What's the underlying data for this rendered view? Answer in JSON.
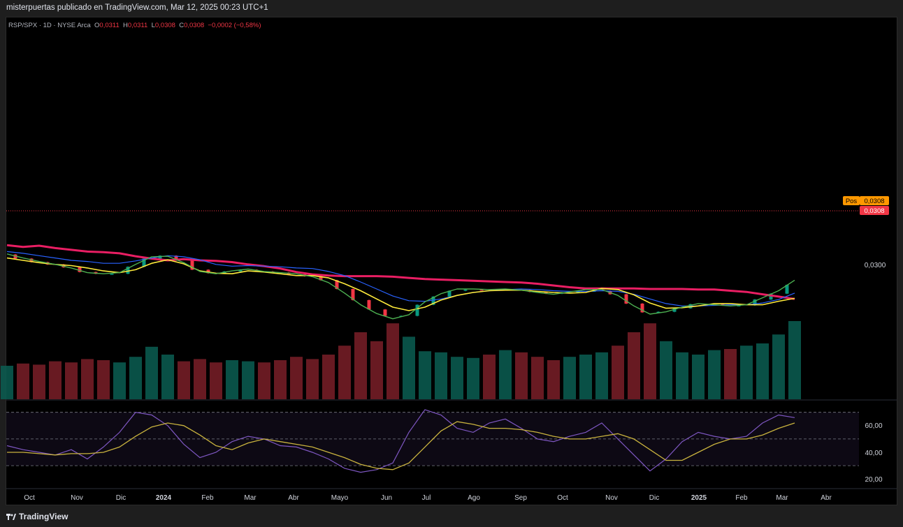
{
  "header": {
    "published": "misterpuertas publicado en TradingView.com, Mar 12, 2025 00:23 UTC+1"
  },
  "legend": {
    "symbol": "RSP/SPX · 1D · NYSE Arca",
    "o_label": "O",
    "o_value": "0,0311",
    "h_label": "H",
    "h_value": "0,0311",
    "l_label": "L",
    "l_value": "0,0308",
    "c_label": "C",
    "c_value": "0,0308",
    "change": "−0,0002 (−0,58%)"
  },
  "price_axis": {
    "pos_label": "Pos",
    "pos_value": "0,0308",
    "last_value": "0,0308",
    "tick_0300": "0,0300"
  },
  "rsi_axis": {
    "ticks": [
      "60,00",
      "40,00",
      "20,00"
    ]
  },
  "footer": {
    "brand": "TradingView"
  },
  "colors": {
    "up": "#089981",
    "down": "#f23645",
    "ma_long": "#e91e63",
    "ma_mid": "#4caf50",
    "ma_fast": "#ffeb3b",
    "ma_blue": "#2962ff",
    "rsi": "#7e57c2",
    "rsi_ma": "#c9b33e",
    "pos_bg": "#ff9800"
  },
  "chart_data": {
    "type": "line",
    "title": "RSP/SPX · 1D · NYSE Arca",
    "x_labels": [
      "Oct",
      "Nov",
      "Dic",
      "2024",
      "Feb",
      "Mar",
      "Abr",
      "Mayo",
      "Jun",
      "Jul",
      "Ago",
      "Sep",
      "Oct",
      "Nov",
      "Dic",
      "2025",
      "Feb",
      "Mar",
      "Abr"
    ],
    "price_ticks": [
      "0,0300"
    ],
    "last_price": 0.0308,
    "ohlc": {
      "open": 0.0311,
      "high": 0.0311,
      "low": 0.0308,
      "close": 0.0308
    },
    "series": [
      {
        "values": [
          0.0332,
          0.0329,
          0.0331,
          0.0327,
          0.0324,
          0.0321,
          0.032,
          0.0318,
          0.0313,
          0.0309,
          0.0306,
          0.0308,
          0.0306,
          0.0305,
          0.0303,
          0.0299,
          0.0296,
          0.0292,
          0.0286,
          0.0282,
          0.028,
          0.0279,
          0.0279,
          0.0279,
          0.0278,
          0.0276,
          0.0274,
          0.0273,
          0.0272,
          0.0271,
          0.027,
          0.0269,
          0.0268,
          0.0266,
          0.0263,
          0.026,
          0.0258,
          0.0258,
          0.0258,
          0.0258,
          0.0257,
          0.0257,
          0.0257,
          0.0256,
          0.0256,
          0.0254,
          0.0252,
          0.0248,
          0.0244,
          0.024
        ]
      },
      {
        "values": [
          0.031,
          0.0306,
          0.0302,
          0.0299,
          0.0297,
          0.0293,
          0.0288,
          0.0285,
          0.029,
          0.0301,
          0.0307,
          0.03,
          0.0288,
          0.0284,
          0.0283,
          0.0288,
          0.0286,
          0.0283,
          0.028,
          0.028,
          0.0276,
          0.0266,
          0.0254,
          0.024,
          0.0226,
          0.022,
          0.0226,
          0.0238,
          0.0246,
          0.0251,
          0.0254,
          0.0255,
          0.0255,
          0.0253,
          0.0251,
          0.025,
          0.0251,
          0.0258,
          0.0256,
          0.0247,
          0.0233,
          0.0224,
          0.0225,
          0.0228,
          0.0232,
          0.0232,
          0.023,
          0.023,
          0.0236,
          0.0241
        ]
      },
      {
        "values": [
          0.0316,
          0.0309,
          0.0303,
          0.0299,
          0.0294,
          0.0286,
          0.0283,
          0.0283,
          0.0295,
          0.0309,
          0.0314,
          0.0306,
          0.029,
          0.0284,
          0.0287,
          0.029,
          0.0287,
          0.0285,
          0.0282,
          0.0279,
          0.0272,
          0.0257,
          0.0238,
          0.0222,
          0.0211,
          0.0211,
          0.023,
          0.0244,
          0.0254,
          0.0256,
          0.0255,
          0.0256,
          0.0255,
          0.0252,
          0.0249,
          0.0251,
          0.0253,
          0.0254,
          0.0248,
          0.0232,
          0.0217,
          0.0218,
          0.0224,
          0.0231,
          0.0231,
          0.0229,
          0.0229,
          0.0239,
          0.0249,
          0.0264
        ]
      },
      {
        "values": [
          0.0317,
          0.031,
          0.0304,
          0.0299,
          0.0293,
          0.0285,
          0.0283,
          0.0285,
          0.0299,
          0.0312,
          0.0313,
          0.0302,
          0.0287,
          0.0283,
          0.0288,
          0.0291,
          0.0287,
          0.0285,
          0.0283,
          0.0278,
          0.0268,
          0.025,
          0.023,
          0.0215,
          0.0206,
          0.0213,
          0.0235,
          0.0249,
          0.0257,
          0.0257,
          0.0256,
          0.0257,
          0.0255,
          0.0251,
          0.0248,
          0.0252,
          0.0256,
          0.0256,
          0.0246,
          0.0228,
          0.0214,
          0.0218,
          0.0226,
          0.0232,
          0.023,
          0.0228,
          0.023,
          0.0242,
          0.0254,
          0.0272
        ]
      },
      {
        "values": [
          0.0321,
          0.0318,
          0.0314,
          0.031,
          0.0306,
          0.0304,
          0.0301,
          0.0301,
          0.0305,
          0.031,
          0.0314,
          0.0312,
          0.0307,
          0.0299,
          0.0296,
          0.0297,
          0.0296,
          0.0295,
          0.0293,
          0.0292,
          0.0287,
          0.028,
          0.0269,
          0.0257,
          0.0245,
          0.0237,
          0.0236,
          0.024,
          0.0246,
          0.0251,
          0.0254,
          0.0256,
          0.0257,
          0.0256,
          0.0254,
          0.0253,
          0.0253,
          0.0254,
          0.0253,
          0.0248,
          0.024,
          0.0232,
          0.0228,
          0.0228,
          0.0229,
          0.023,
          0.023,
          0.0233,
          0.0239,
          0.025
        ]
      }
    ],
    "volume_relative": [
      0.3,
      0.32,
      0.31,
      0.34,
      0.33,
      0.36,
      0.35,
      0.33,
      0.38,
      0.47,
      0.4,
      0.34,
      0.36,
      0.33,
      0.35,
      0.34,
      0.33,
      0.35,
      0.38,
      0.36,
      0.4,
      0.48,
      0.6,
      0.52,
      0.68,
      0.56,
      0.43,
      0.42,
      0.38,
      0.37,
      0.4,
      0.44,
      0.42,
      0.38,
      0.35,
      0.38,
      0.4,
      0.42,
      0.48,
      0.6,
      0.68,
      0.52,
      0.42,
      0.4,
      0.44,
      0.45,
      0.48,
      0.5,
      0.58,
      0.7
    ],
    "rsi": {
      "ticks": [
        60,
        40,
        20
      ],
      "upper_band": 70,
      "middle_band": 50,
      "lower_band": 30,
      "values": [
        45,
        42,
        40,
        38,
        42,
        35,
        44,
        55,
        70,
        68,
        60,
        46,
        36,
        40,
        48,
        52,
        50,
        45,
        44,
        40,
        35,
        28,
        25,
        27,
        32,
        55,
        72,
        68,
        58,
        55,
        62,
        65,
        58,
        50,
        48,
        52,
        55,
        62,
        50,
        38,
        26,
        35,
        48,
        55,
        52,
        50,
        52,
        62,
        68,
        66
      ],
      "ma_values": [
        40,
        40,
        39,
        38,
        39,
        39,
        40,
        44,
        52,
        59,
        62,
        60,
        53,
        45,
        42,
        47,
        50,
        48,
        46,
        44,
        40,
        36,
        31,
        28,
        27,
        32,
        44,
        56,
        63,
        61,
        58,
        58,
        57,
        55,
        52,
        50,
        50,
        52,
        54,
        50,
        42,
        34,
        34,
        40,
        46,
        50,
        50,
        53,
        58,
        62
      ]
    }
  }
}
